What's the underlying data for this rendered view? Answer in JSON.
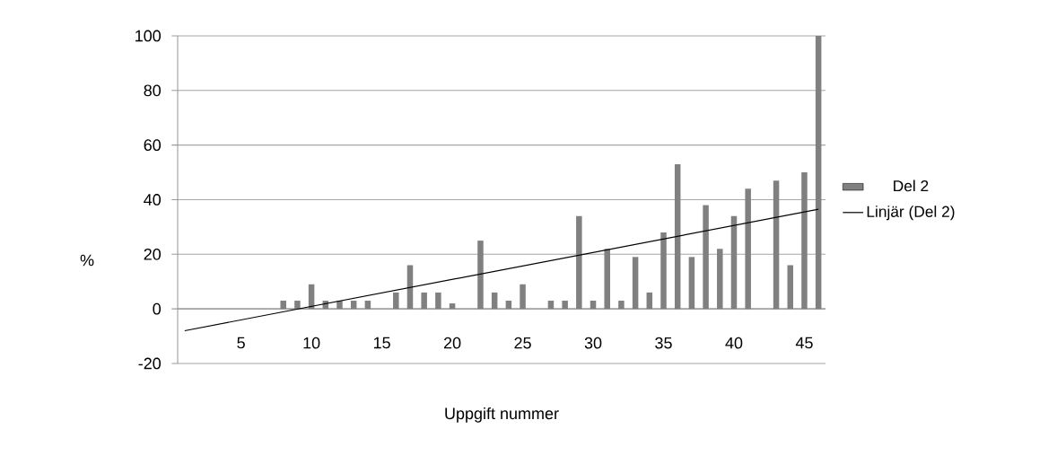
{
  "chart_data": {
    "type": "bar",
    "xlabel": "Uppgift nummer",
    "ylabel": "%",
    "x": [
      1,
      2,
      3,
      4,
      5,
      6,
      7,
      8,
      9,
      10,
      11,
      12,
      13,
      14,
      15,
      16,
      17,
      18,
      19,
      20,
      21,
      22,
      23,
      24,
      25,
      26,
      27,
      28,
      29,
      30,
      31,
      32,
      33,
      34,
      35,
      36,
      37,
      38,
      39,
      40,
      41,
      42,
      43,
      44,
      45,
      46
    ],
    "series": [
      {
        "name": "Del 2",
        "color": "#808080",
        "values": [
          0,
          0,
          0,
          0,
          0,
          0,
          0,
          3,
          3,
          9,
          3,
          3,
          3,
          3,
          0,
          6,
          16,
          6,
          6,
          2,
          0,
          25,
          6,
          3,
          9,
          0,
          3,
          3,
          34,
          3,
          22,
          3,
          19,
          6,
          28,
          53,
          19,
          38,
          22,
          34,
          44,
          0,
          47,
          16,
          50,
          100
        ]
      },
      {
        "name": "Linjär (Del 2)",
        "type": "line",
        "color": "#000000",
        "x": [
          1,
          46
        ],
        "values": [
          -8,
          36.5
        ]
      }
    ],
    "xlim": [
      0.5,
      46.5
    ],
    "xticks": [
      5,
      10,
      15,
      20,
      25,
      30,
      35,
      40,
      45
    ],
    "ylim": [
      -20,
      100
    ],
    "yticks": [
      -20,
      0,
      20,
      40,
      60,
      80,
      100
    ],
    "grid": "y",
    "legend": "right"
  }
}
